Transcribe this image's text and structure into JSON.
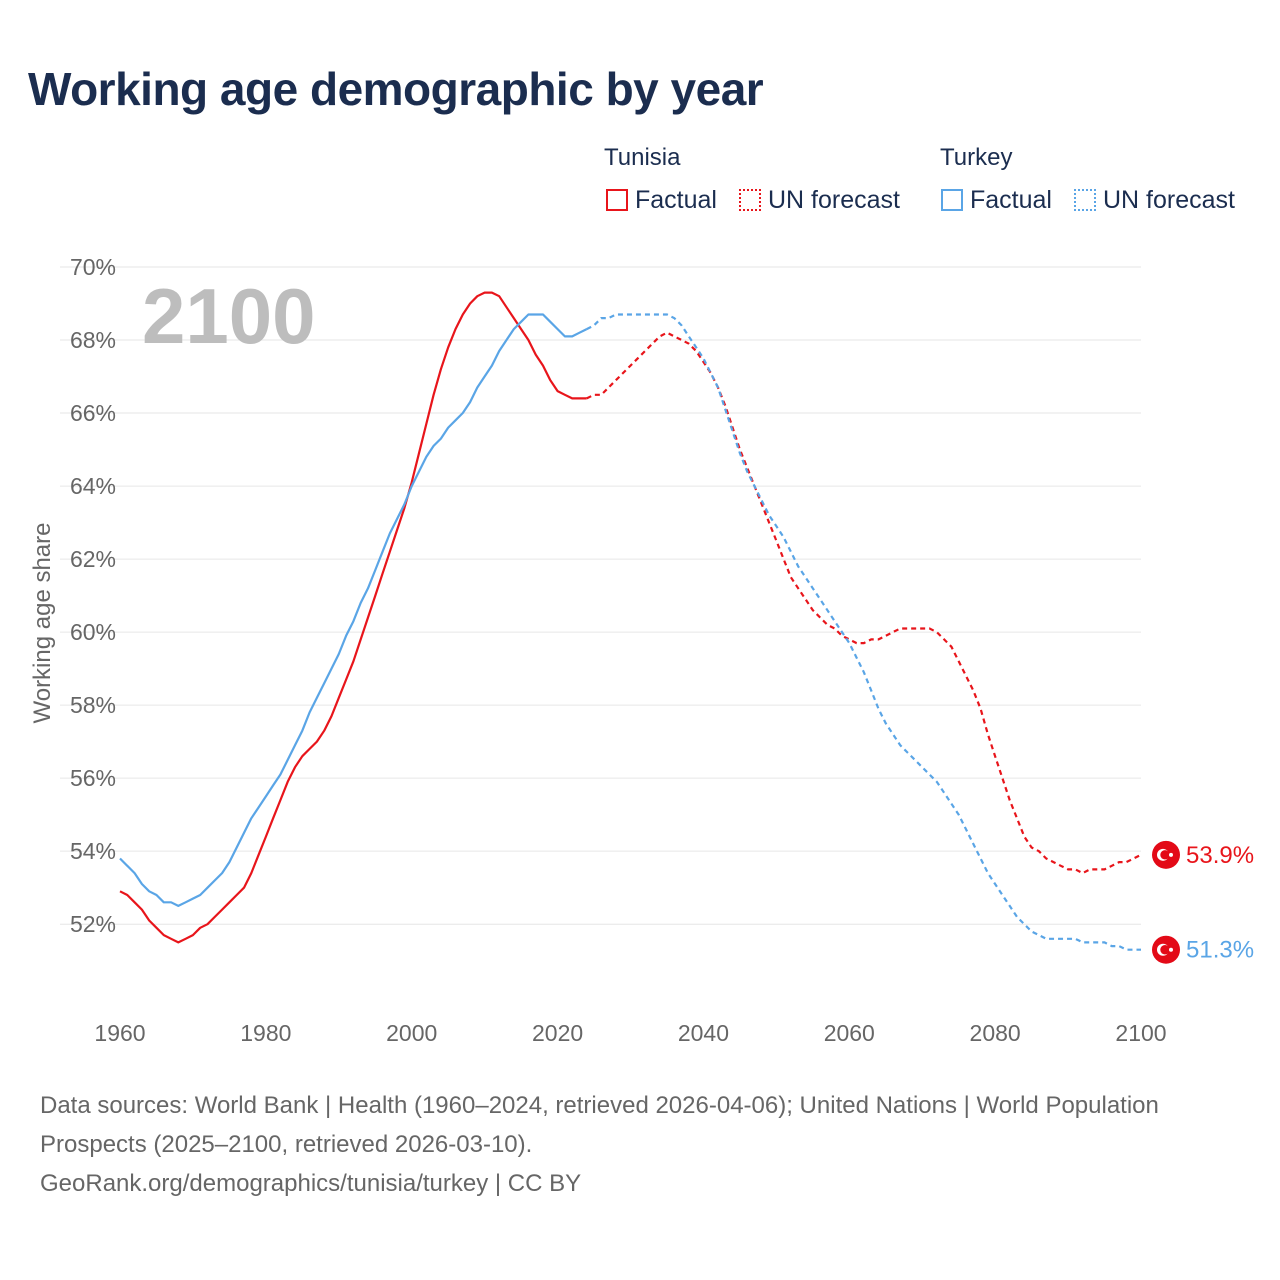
{
  "title": "Working age demographic by year",
  "legend": {
    "tunisia": {
      "name": "Tunisia",
      "factual": "Factual",
      "forecast": "UN forecast"
    },
    "turkey": {
      "name": "Turkey",
      "factual": "Factual",
      "forecast": "UN forecast"
    }
  },
  "year_watermark": "2100",
  "footer": {
    "sources": "Data sources: World Bank | Health (1960–2024, retrieved 2026-04-06); United Nations | World Population Prospects (2025–2100, retrieved 2026-03-10).",
    "credit": "GeoRank.org/demographics/tunisia/turkey | CC BY"
  },
  "colors": {
    "tunisia": "#e8151b",
    "turkey": "#5aa5e6",
    "grid": "#e6e6e6",
    "axis_text": "#666666",
    "watermark": "#bdbdbd"
  },
  "chart_data": {
    "type": "line",
    "title": "Working age demographic by year",
    "xlabel": "",
    "ylabel": "Working age share",
    "xlim": [
      1960,
      2100
    ],
    "ylim": [
      50.8,
      70
    ],
    "x_ticks": [
      1960,
      1980,
      2000,
      2020,
      2040,
      2060,
      2080,
      2100
    ],
    "y_ticks": [
      52,
      54,
      56,
      58,
      60,
      62,
      64,
      66,
      68,
      70
    ],
    "y_tick_labels": [
      "52%",
      "54%",
      "56%",
      "58%",
      "60%",
      "62%",
      "64%",
      "66%",
      "68%",
      "70%"
    ],
    "series": [
      {
        "name": "Tunisia",
        "color": "#e8151b",
        "end_label": "53.9%",
        "factual": [
          [
            1960,
            52.9
          ],
          [
            1961,
            52.8
          ],
          [
            1962,
            52.6
          ],
          [
            1963,
            52.4
          ],
          [
            1964,
            52.1
          ],
          [
            1965,
            51.9
          ],
          [
            1966,
            51.7
          ],
          [
            1967,
            51.6
          ],
          [
            1968,
            51.5
          ],
          [
            1969,
            51.6
          ],
          [
            1970,
            51.7
          ],
          [
            1971,
            51.9
          ],
          [
            1972,
            52.0
          ],
          [
            1973,
            52.2
          ],
          [
            1974,
            52.4
          ],
          [
            1975,
            52.6
          ],
          [
            1976,
            52.8
          ],
          [
            1977,
            53.0
          ],
          [
            1978,
            53.4
          ],
          [
            1979,
            53.9
          ],
          [
            1980,
            54.4
          ],
          [
            1981,
            54.9
          ],
          [
            1982,
            55.4
          ],
          [
            1983,
            55.9
          ],
          [
            1984,
            56.3
          ],
          [
            1985,
            56.6
          ],
          [
            1986,
            56.8
          ],
          [
            1987,
            57.0
          ],
          [
            1988,
            57.3
          ],
          [
            1989,
            57.7
          ],
          [
            1990,
            58.2
          ],
          [
            1991,
            58.7
          ],
          [
            1992,
            59.2
          ],
          [
            1993,
            59.8
          ],
          [
            1994,
            60.4
          ],
          [
            1995,
            61.0
          ],
          [
            1996,
            61.6
          ],
          [
            1997,
            62.2
          ],
          [
            1998,
            62.8
          ],
          [
            1999,
            63.4
          ],
          [
            2000,
            64.1
          ],
          [
            2001,
            64.9
          ],
          [
            2002,
            65.7
          ],
          [
            2003,
            66.5
          ],
          [
            2004,
            67.2
          ],
          [
            2005,
            67.8
          ],
          [
            2006,
            68.3
          ],
          [
            2007,
            68.7
          ],
          [
            2008,
            69.0
          ],
          [
            2009,
            69.2
          ],
          [
            2010,
            69.3
          ],
          [
            2011,
            69.3
          ],
          [
            2012,
            69.2
          ],
          [
            2013,
            68.9
          ],
          [
            2014,
            68.6
          ],
          [
            2015,
            68.3
          ],
          [
            2016,
            68.0
          ],
          [
            2017,
            67.6
          ],
          [
            2018,
            67.3
          ],
          [
            2019,
            66.9
          ],
          [
            2020,
            66.6
          ],
          [
            2021,
            66.5
          ],
          [
            2022,
            66.4
          ],
          [
            2023,
            66.4
          ],
          [
            2024,
            66.4
          ]
        ],
        "forecast": [
          [
            2024,
            66.4
          ],
          [
            2025,
            66.5
          ],
          [
            2026,
            66.5
          ],
          [
            2027,
            66.7
          ],
          [
            2028,
            66.9
          ],
          [
            2029,
            67.1
          ],
          [
            2030,
            67.3
          ],
          [
            2031,
            67.5
          ],
          [
            2032,
            67.7
          ],
          [
            2033,
            67.9
          ],
          [
            2034,
            68.1
          ],
          [
            2035,
            68.2
          ],
          [
            2036,
            68.1
          ],
          [
            2037,
            68.0
          ],
          [
            2038,
            67.9
          ],
          [
            2039,
            67.7
          ],
          [
            2040,
            67.4
          ],
          [
            2041,
            67.1
          ],
          [
            2042,
            66.7
          ],
          [
            2043,
            66.2
          ],
          [
            2044,
            65.6
          ],
          [
            2045,
            65.0
          ],
          [
            2046,
            64.5
          ],
          [
            2047,
            64.0
          ],
          [
            2048,
            63.5
          ],
          [
            2049,
            63.0
          ],
          [
            2050,
            62.5
          ],
          [
            2051,
            62.0
          ],
          [
            2052,
            61.5
          ],
          [
            2053,
            61.2
          ],
          [
            2054,
            60.9
          ],
          [
            2055,
            60.6
          ],
          [
            2056,
            60.4
          ],
          [
            2057,
            60.2
          ],
          [
            2058,
            60.1
          ],
          [
            2059,
            59.9
          ],
          [
            2060,
            59.8
          ],
          [
            2061,
            59.7
          ],
          [
            2062,
            59.7
          ],
          [
            2063,
            59.8
          ],
          [
            2064,
            59.8
          ],
          [
            2065,
            59.9
          ],
          [
            2066,
            60.0
          ],
          [
            2067,
            60.1
          ],
          [
            2068,
            60.1
          ],
          [
            2069,
            60.1
          ],
          [
            2070,
            60.1
          ],
          [
            2071,
            60.1
          ],
          [
            2072,
            60.0
          ],
          [
            2073,
            59.8
          ],
          [
            2074,
            59.6
          ],
          [
            2075,
            59.2
          ],
          [
            2076,
            58.8
          ],
          [
            2077,
            58.4
          ],
          [
            2078,
            57.9
          ],
          [
            2079,
            57.2
          ],
          [
            2080,
            56.6
          ],
          [
            2081,
            56.0
          ],
          [
            2082,
            55.4
          ],
          [
            2083,
            54.9
          ],
          [
            2084,
            54.4
          ],
          [
            2085,
            54.1
          ],
          [
            2086,
            54.0
          ],
          [
            2087,
            53.8
          ],
          [
            2088,
            53.7
          ],
          [
            2089,
            53.6
          ],
          [
            2090,
            53.5
          ],
          [
            2091,
            53.5
          ],
          [
            2092,
            53.4
          ],
          [
            2093,
            53.5
          ],
          [
            2094,
            53.5
          ],
          [
            2095,
            53.5
          ],
          [
            2096,
            53.6
          ],
          [
            2097,
            53.7
          ],
          [
            2098,
            53.7
          ],
          [
            2099,
            53.8
          ],
          [
            2100,
            53.9
          ]
        ]
      },
      {
        "name": "Turkey",
        "color": "#5aa5e6",
        "end_label": "51.3%",
        "factual": [
          [
            1960,
            53.8
          ],
          [
            1961,
            53.6
          ],
          [
            1962,
            53.4
          ],
          [
            1963,
            53.1
          ],
          [
            1964,
            52.9
          ],
          [
            1965,
            52.8
          ],
          [
            1966,
            52.6
          ],
          [
            1967,
            52.6
          ],
          [
            1968,
            52.5
          ],
          [
            1969,
            52.6
          ],
          [
            1970,
            52.7
          ],
          [
            1971,
            52.8
          ],
          [
            1972,
            53.0
          ],
          [
            1973,
            53.2
          ],
          [
            1974,
            53.4
          ],
          [
            1975,
            53.7
          ],
          [
            1976,
            54.1
          ],
          [
            1977,
            54.5
          ],
          [
            1978,
            54.9
          ],
          [
            1979,
            55.2
          ],
          [
            1980,
            55.5
          ],
          [
            1981,
            55.8
          ],
          [
            1982,
            56.1
          ],
          [
            1983,
            56.5
          ],
          [
            1984,
            56.9
          ],
          [
            1985,
            57.3
          ],
          [
            1986,
            57.8
          ],
          [
            1987,
            58.2
          ],
          [
            1988,
            58.6
          ],
          [
            1989,
            59.0
          ],
          [
            1990,
            59.4
          ],
          [
            1991,
            59.9
          ],
          [
            1992,
            60.3
          ],
          [
            1993,
            60.8
          ],
          [
            1994,
            61.2
          ],
          [
            1995,
            61.7
          ],
          [
            1996,
            62.2
          ],
          [
            1997,
            62.7
          ],
          [
            1998,
            63.1
          ],
          [
            1999,
            63.5
          ],
          [
            2000,
            64.0
          ],
          [
            2001,
            64.4
          ],
          [
            2002,
            64.8
          ],
          [
            2003,
            65.1
          ],
          [
            2004,
            65.3
          ],
          [
            2005,
            65.6
          ],
          [
            2006,
            65.8
          ],
          [
            2007,
            66.0
          ],
          [
            2008,
            66.3
          ],
          [
            2009,
            66.7
          ],
          [
            2010,
            67.0
          ],
          [
            2011,
            67.3
          ],
          [
            2012,
            67.7
          ],
          [
            2013,
            68.0
          ],
          [
            2014,
            68.3
          ],
          [
            2015,
            68.5
          ],
          [
            2016,
            68.7
          ],
          [
            2017,
            68.7
          ],
          [
            2018,
            68.7
          ],
          [
            2019,
            68.5
          ],
          [
            2020,
            68.3
          ],
          [
            2021,
            68.1
          ],
          [
            2022,
            68.1
          ],
          [
            2023,
            68.2
          ],
          [
            2024,
            68.3
          ]
        ],
        "forecast": [
          [
            2024,
            68.3
          ],
          [
            2025,
            68.4
          ],
          [
            2026,
            68.6
          ],
          [
            2027,
            68.6
          ],
          [
            2028,
            68.7
          ],
          [
            2029,
            68.7
          ],
          [
            2030,
            68.7
          ],
          [
            2031,
            68.7
          ],
          [
            2032,
            68.7
          ],
          [
            2033,
            68.7
          ],
          [
            2034,
            68.7
          ],
          [
            2035,
            68.7
          ],
          [
            2036,
            68.6
          ],
          [
            2037,
            68.4
          ],
          [
            2038,
            68.1
          ],
          [
            2039,
            67.8
          ],
          [
            2040,
            67.5
          ],
          [
            2041,
            67.1
          ],
          [
            2042,
            66.7
          ],
          [
            2043,
            66.1
          ],
          [
            2044,
            65.5
          ],
          [
            2045,
            64.9
          ],
          [
            2046,
            64.4
          ],
          [
            2047,
            64.0
          ],
          [
            2048,
            63.6
          ],
          [
            2049,
            63.2
          ],
          [
            2050,
            62.9
          ],
          [
            2051,
            62.6
          ],
          [
            2052,
            62.2
          ],
          [
            2053,
            61.8
          ],
          [
            2054,
            61.5
          ],
          [
            2055,
            61.2
          ],
          [
            2056,
            60.9
          ],
          [
            2057,
            60.6
          ],
          [
            2058,
            60.3
          ],
          [
            2059,
            60.0
          ],
          [
            2060,
            59.7
          ],
          [
            2061,
            59.3
          ],
          [
            2062,
            58.9
          ],
          [
            2063,
            58.4
          ],
          [
            2064,
            57.9
          ],
          [
            2065,
            57.5
          ],
          [
            2066,
            57.2
          ],
          [
            2067,
            56.9
          ],
          [
            2068,
            56.7
          ],
          [
            2069,
            56.5
          ],
          [
            2070,
            56.3
          ],
          [
            2071,
            56.1
          ],
          [
            2072,
            55.9
          ],
          [
            2073,
            55.6
          ],
          [
            2074,
            55.3
          ],
          [
            2075,
            55.0
          ],
          [
            2076,
            54.6
          ],
          [
            2077,
            54.2
          ],
          [
            2078,
            53.8
          ],
          [
            2079,
            53.4
          ],
          [
            2080,
            53.1
          ],
          [
            2081,
            52.8
          ],
          [
            2082,
            52.5
          ],
          [
            2083,
            52.2
          ],
          [
            2084,
            52.0
          ],
          [
            2085,
            51.8
          ],
          [
            2086,
            51.7
          ],
          [
            2087,
            51.6
          ],
          [
            2088,
            51.6
          ],
          [
            2089,
            51.6
          ],
          [
            2090,
            51.6
          ],
          [
            2091,
            51.6
          ],
          [
            2092,
            51.5
          ],
          [
            2093,
            51.5
          ],
          [
            2094,
            51.5
          ],
          [
            2095,
            51.5
          ],
          [
            2096,
            51.4
          ],
          [
            2097,
            51.4
          ],
          [
            2098,
            51.3
          ],
          [
            2099,
            51.3
          ],
          [
            2100,
            51.3
          ]
        ]
      }
    ]
  }
}
